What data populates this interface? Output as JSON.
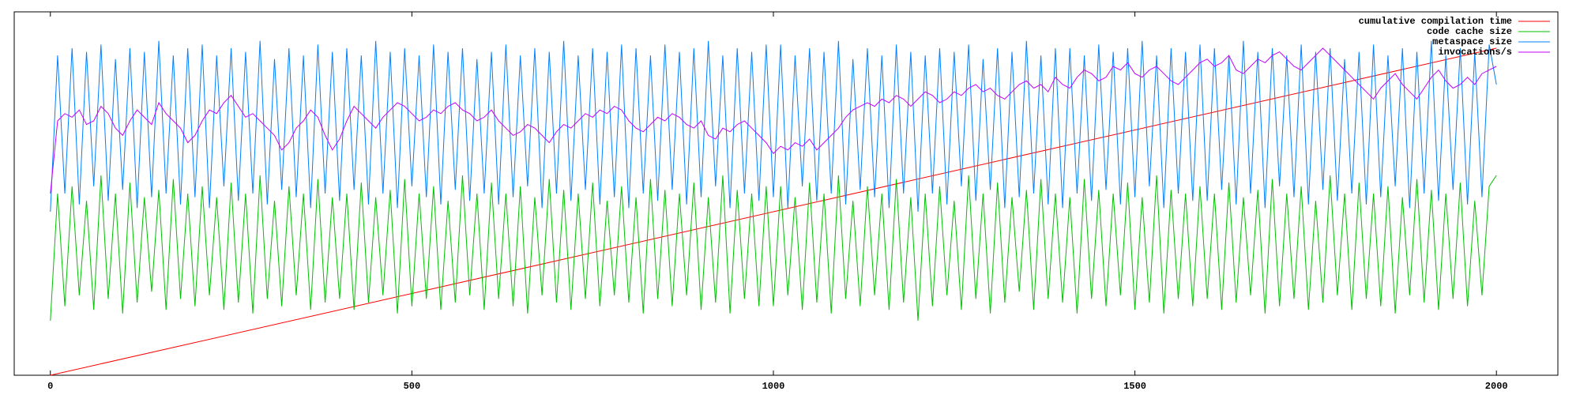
{
  "chart_data": {
    "type": "line",
    "xlim": [
      -50,
      2085
    ],
    "ylim": [
      0,
      100
    ],
    "xticks": [
      0,
      500,
      1000,
      1500,
      2000
    ],
    "legend": "top-right",
    "x": [
      0,
      10,
      20,
      30,
      40,
      50,
      60,
      70,
      80,
      90,
      100,
      110,
      120,
      130,
      140,
      150,
      160,
      170,
      180,
      190,
      200,
      210,
      220,
      230,
      240,
      250,
      260,
      270,
      280,
      290,
      300,
      310,
      320,
      330,
      340,
      350,
      360,
      370,
      380,
      390,
      400,
      410,
      420,
      430,
      440,
      450,
      460,
      470,
      480,
      490,
      500,
      510,
      520,
      530,
      540,
      550,
      560,
      570,
      580,
      590,
      600,
      610,
      620,
      630,
      640,
      650,
      660,
      670,
      680,
      690,
      700,
      710,
      720,
      730,
      740,
      750,
      760,
      770,
      780,
      790,
      800,
      810,
      820,
      830,
      840,
      850,
      860,
      870,
      880,
      890,
      900,
      910,
      920,
      930,
      940,
      950,
      960,
      970,
      980,
      990,
      1000,
      1010,
      1020,
      1030,
      1040,
      1050,
      1060,
      1070,
      1080,
      1090,
      1100,
      1110,
      1120,
      1130,
      1140,
      1150,
      1160,
      1170,
      1180,
      1190,
      1200,
      1210,
      1220,
      1230,
      1240,
      1250,
      1260,
      1270,
      1280,
      1290,
      1300,
      1310,
      1320,
      1330,
      1340,
      1350,
      1360,
      1370,
      1380,
      1390,
      1400,
      1410,
      1420,
      1430,
      1440,
      1450,
      1460,
      1470,
      1480,
      1490,
      1500,
      1510,
      1520,
      1530,
      1540,
      1550,
      1560,
      1570,
      1580,
      1590,
      1600,
      1610,
      1620,
      1630,
      1640,
      1650,
      1660,
      1670,
      1680,
      1690,
      1700,
      1710,
      1720,
      1730,
      1740,
      1750,
      1760,
      1770,
      1780,
      1790,
      1800,
      1810,
      1820,
      1830,
      1840,
      1850,
      1860,
      1870,
      1880,
      1890,
      1900,
      1910,
      1920,
      1930,
      1940,
      1950,
      1960,
      1970,
      1980,
      1990,
      2000
    ],
    "series": [
      {
        "name": "cumulative compilation time",
        "color": "#ff0000",
        "x": [
          0,
          2000
        ],
        "values": [
          0,
          90
        ]
      },
      {
        "name": "code cache size",
        "color": "#00c000",
        "values": [
          15,
          50,
          19,
          52,
          22,
          48,
          18,
          55,
          21,
          50,
          17,
          53,
          20,
          49,
          23,
          51,
          18,
          54,
          21,
          50,
          19,
          52,
          22,
          49,
          18,
          53,
          20,
          50,
          17,
          55,
          21,
          48,
          19,
          52,
          22,
          50,
          18,
          54,
          20,
          49,
          21,
          50,
          18,
          53,
          20,
          49,
          22,
          51,
          17,
          54,
          19,
          50,
          21,
          52,
          18,
          48,
          20,
          55,
          22,
          50,
          18,
          53,
          21,
          50,
          19,
          52,
          17,
          49,
          22,
          54,
          20,
          51,
          18,
          50,
          21,
          53,
          19,
          48,
          22,
          52,
          20,
          49,
          17,
          54,
          21,
          51,
          19,
          50,
          22,
          53,
          18,
          49,
          20,
          55,
          17,
          51,
          21,
          50,
          19,
          52,
          19,
          52,
          22,
          49,
          18,
          53,
          20,
          50,
          17,
          55,
          21,
          48,
          19,
          52,
          22,
          50,
          18,
          54,
          20,
          49,
          15,
          50,
          19,
          52,
          22,
          48,
          18,
          55,
          21,
          50,
          17,
          53,
          20,
          49,
          23,
          51,
          18,
          54,
          21,
          50,
          20,
          49,
          17,
          54,
          21,
          51,
          19,
          50,
          22,
          53,
          18,
          49,
          20,
          55,
          17,
          51,
          21,
          50,
          19,
          52,
          21,
          50,
          18,
          53,
          20,
          49,
          22,
          51,
          17,
          54,
          19,
          50,
          21,
          52,
          18,
          48,
          20,
          55,
          22,
          50,
          18,
          53,
          21,
          50,
          19,
          52,
          17,
          49,
          22,
          54,
          20,
          51,
          18,
          50,
          21,
          53,
          19,
          48,
          22,
          52,
          55
        ]
      },
      {
        "name": "metaspace size",
        "color": "#0080ff",
        "values": [
          45,
          88,
          50,
          90,
          47,
          89,
          52,
          91,
          48,
          87,
          51,
          90,
          46,
          89,
          49,
          92,
          50,
          88,
          47,
          90,
          49,
          91,
          46,
          88,
          52,
          90,
          48,
          89,
          50,
          92,
          47,
          87,
          51,
          90,
          49,
          88,
          46,
          91,
          50,
          89,
          48,
          90,
          51,
          88,
          47,
          92,
          50,
          89,
          46,
          90,
          52,
          88,
          49,
          91,
          47,
          89,
          51,
          90,
          48,
          87,
          50,
          89,
          47,
          91,
          49,
          88,
          52,
          90,
          46,
          89,
          50,
          92,
          48,
          88,
          51,
          90,
          47,
          89,
          49,
          91,
          46,
          90,
          50,
          88,
          48,
          91,
          51,
          89,
          47,
          90,
          49,
          92,
          52,
          88,
          46,
          90,
          50,
          89,
          48,
          91,
          49,
          91,
          46,
          88,
          52,
          90,
          48,
          89,
          50,
          92,
          47,
          87,
          51,
          90,
          49,
          88,
          46,
          91,
          50,
          89,
          45,
          88,
          50,
          90,
          47,
          89,
          52,
          91,
          48,
          87,
          51,
          90,
          46,
          89,
          49,
          92,
          50,
          88,
          47,
          90,
          46,
          90,
          50,
          88,
          48,
          91,
          51,
          89,
          47,
          90,
          49,
          92,
          52,
          88,
          46,
          90,
          50,
          89,
          48,
          91,
          48,
          90,
          51,
          88,
          47,
          92,
          50,
          89,
          46,
          90,
          52,
          88,
          49,
          91,
          47,
          89,
          51,
          90,
          48,
          87,
          50,
          89,
          47,
          91,
          49,
          88,
          52,
          90,
          46,
          89,
          50,
          92,
          48,
          88,
          51,
          90,
          47,
          89,
          49,
          91,
          80
        ]
      },
      {
        "name": "invocations/s",
        "color": "#c000ff",
        "values": [
          50,
          70,
          72,
          71,
          73,
          69,
          70,
          74,
          72,
          68,
          66,
          70,
          73,
          71,
          69,
          75,
          72,
          70,
          68,
          64,
          66,
          70,
          73,
          72,
          75,
          77,
          74,
          71,
          72,
          70,
          68,
          66,
          62,
          64,
          68,
          70,
          73,
          71,
          66,
          62,
          65,
          70,
          74,
          72,
          70,
          68,
          71,
          73,
          75,
          74,
          72,
          70,
          71,
          73,
          72,
          74,
          75,
          73,
          72,
          70,
          71,
          73,
          70,
          68,
          66,
          67,
          69,
          68,
          66,
          64,
          67,
          69,
          68,
          70,
          72,
          71,
          73,
          72,
          74,
          73,
          70,
          68,
          67,
          69,
          71,
          70,
          72,
          71,
          69,
          68,
          70,
          66,
          65,
          68,
          67,
          69,
          70,
          68,
          66,
          64,
          61,
          63,
          62,
          64,
          63,
          65,
          62,
          64,
          66,
          68,
          71,
          73,
          74,
          75,
          74,
          76,
          75,
          77,
          76,
          74,
          76,
          78,
          77,
          75,
          76,
          78,
          77,
          79,
          80,
          78,
          79,
          77,
          76,
          78,
          80,
          81,
          79,
          80,
          78,
          82,
          80,
          79,
          82,
          84,
          83,
          81,
          82,
          85,
          84,
          86,
          83,
          82,
          84,
          85,
          83,
          81,
          80,
          82,
          84,
          86,
          87,
          85,
          86,
          88,
          84,
          83,
          85,
          87,
          86,
          88,
          89,
          87,
          85,
          84,
          86,
          88,
          90,
          88,
          86,
          84,
          82,
          80,
          78,
          76,
          79,
          81,
          83,
          80,
          78,
          76,
          79,
          82,
          84,
          81,
          79,
          80,
          82,
          80,
          83,
          84,
          85
        ]
      }
    ]
  }
}
